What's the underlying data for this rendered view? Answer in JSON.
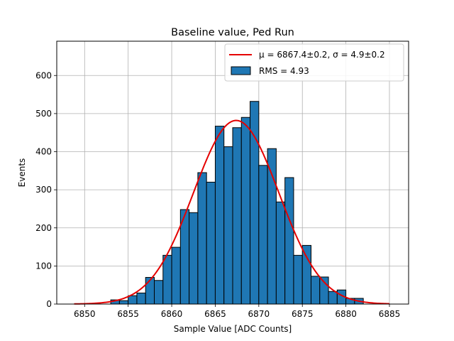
{
  "chart_data": {
    "type": "bar",
    "title": "Baseline value, Ped Run",
    "xlabel": "Sample Value [ADC Counts]",
    "ylabel": "Events",
    "xlim": [
      6846.8,
      6887.2
    ],
    "ylim": [
      0,
      690
    ],
    "grid": true,
    "legend_position": "top-right",
    "xticks": [
      6850,
      6855,
      6860,
      6865,
      6870,
      6875,
      6880,
      6885
    ],
    "yticks": [
      0,
      100,
      200,
      300,
      400,
      500,
      600
    ],
    "bin_edges": [
      6853,
      6854,
      6855,
      6856,
      6857,
      6858,
      6859,
      6860,
      6861,
      6862,
      6863,
      6864,
      6865,
      6866,
      6867,
      6868,
      6869,
      6870,
      6871,
      6872,
      6873,
      6874,
      6875,
      6876,
      6877,
      6878,
      6879,
      6880,
      6881,
      6882
    ],
    "series": [
      {
        "name": "RMS = 4.93",
        "kind": "histogram",
        "color": "#1f77b4",
        "edgecolor": "#000000",
        "values": [
          11,
          9,
          22,
          29,
          70,
          62,
          128,
          149,
          248,
          240,
          345,
          320,
          467,
          413,
          463,
          490,
          532,
          364,
          408,
          268,
          332,
          128,
          154,
          73,
          71,
          33,
          37,
          15,
          15
        ]
      },
      {
        "name": "μ = 6867.4±0.2, σ = 4.9±0.2",
        "kind": "gaussian-fit",
        "color": "#e50000",
        "mu": 6867.4,
        "sigma": 4.9,
        "amplitude": 482,
        "x_range": [
          6848.8,
          6885
        ]
      }
    ],
    "legend": [
      {
        "marker": "line",
        "label_tex": true,
        "label": "μ = 6867.4±0.2, σ = 4.9±0.2"
      },
      {
        "marker": "patch",
        "label": "RMS = 4.93"
      }
    ]
  }
}
